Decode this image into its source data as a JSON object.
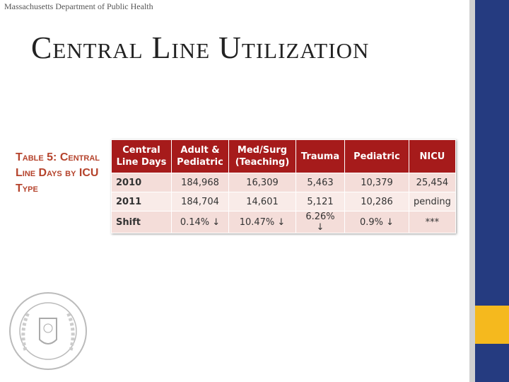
{
  "header": {
    "org": "Massachusetts Department of Public Health",
    "title": "Central Line Utilization"
  },
  "caption": "Table 5: Central Line Days by ICU Type",
  "table": {
    "columns": [
      "Central Line Days",
      "Adult & Pediatric",
      "Med/Surg (Teaching)",
      "Trauma",
      "Pediatric",
      "NICU"
    ],
    "rows": [
      [
        "2010",
        "184,968",
        "16,309",
        "5,463",
        "10,379",
        "25,454"
      ],
      [
        "2011",
        "184,704",
        "14,601",
        "5,121",
        "10,286",
        "pending"
      ],
      [
        "Shift",
        "0.14% ↓",
        "10.47% ↓",
        "6.26% ↓",
        "0.9% ↓",
        "***"
      ]
    ]
  }
}
